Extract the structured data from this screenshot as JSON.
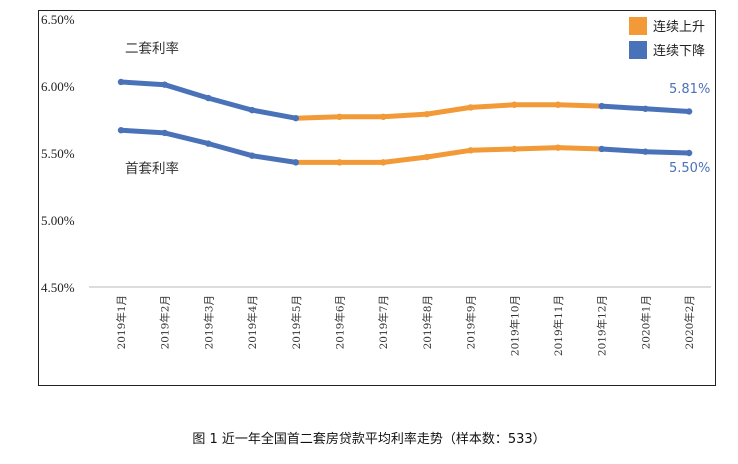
{
  "chart_data": {
    "type": "line",
    "categories": [
      "2019年1月",
      "2019年2月",
      "2019年3月",
      "2019年4月",
      "2019年5月",
      "2019年6月",
      "2019年7月",
      "2019年8月",
      "2019年9月",
      "2019年10月",
      "2019年11月",
      "2019年12月",
      "2020年1月",
      "2020年2月"
    ],
    "series": [
      {
        "name": "二套利率",
        "values": [
          6.03,
          6.01,
          5.91,
          5.82,
          5.76,
          5.77,
          5.77,
          5.79,
          5.84,
          5.86,
          5.86,
          5.85,
          5.83,
          5.81
        ],
        "end_label": "5.81%"
      },
      {
        "name": "首套利率",
        "values": [
          5.67,
          5.65,
          5.57,
          5.48,
          5.43,
          5.43,
          5.43,
          5.47,
          5.52,
          5.53,
          5.54,
          5.53,
          5.51,
          5.5
        ],
        "end_label": "5.50%"
      }
    ],
    "segments": {
      "down": [
        [
          0,
          4
        ],
        [
          11,
          13
        ]
      ],
      "up": [
        [
          4,
          11
        ]
      ]
    },
    "ylim": [
      4.5,
      6.5
    ],
    "yticks": [
      "4.50%",
      "5.00%",
      "5.50%",
      "6.00%",
      "6.50%"
    ],
    "ytick_values": [
      4.5,
      5.0,
      5.5,
      6.0,
      6.5
    ],
    "legend": [
      {
        "label": "连续上升",
        "color": "#f29a38"
      },
      {
        "label": "连续下降",
        "color": "#4a72b8"
      }
    ],
    "legend_position": "top-right",
    "grid": false,
    "colors": {
      "up": "#f29a38",
      "down": "#4a72b8"
    }
  },
  "caption": "图 1 近一年全国首二套房贷款平均利率走势（样本数：533）"
}
